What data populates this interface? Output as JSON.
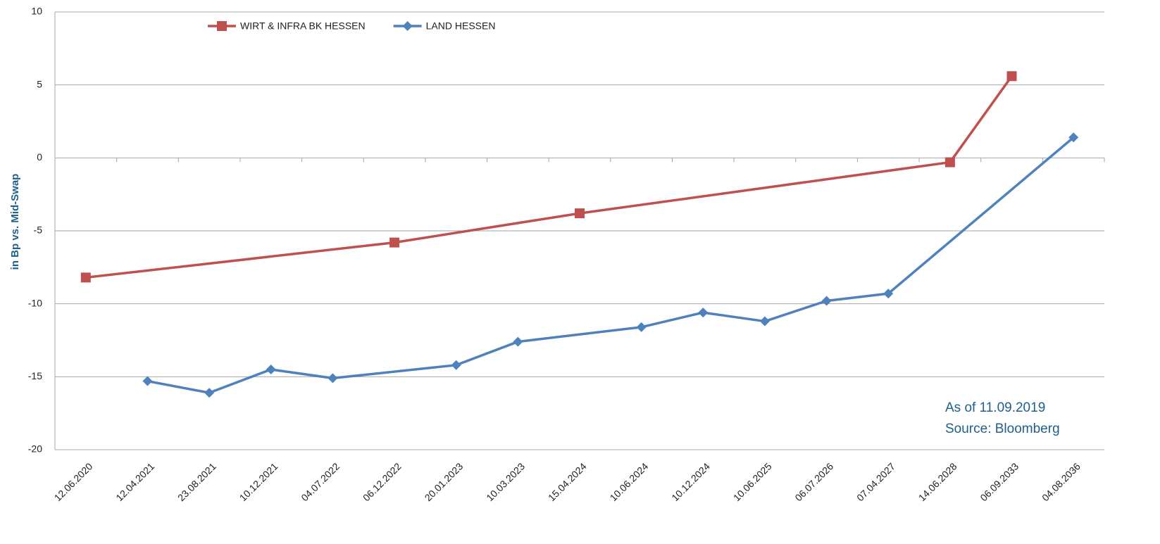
{
  "chart_data": {
    "type": "line",
    "y_label": "in Bp vs. Mid-Swap",
    "annotations": [
      "As of 11.09.2019",
      "Source: Bloomberg"
    ],
    "categories": [
      "12.06.2020",
      "12.04.2021",
      "23.08.2021",
      "10.12.2021",
      "04.07.2022",
      "06.12.2022",
      "20.01.2023",
      "10.03.2023",
      "15.04.2024",
      "10.06.2024",
      "10.12.2024",
      "10.06.2025",
      "06.07.2026",
      "07.04.2027",
      "14.06.2028",
      "06.09.2033",
      "04.08.2036"
    ],
    "series": [
      {
        "name": "WIRT & INFRA BK HESSEN",
        "color": "#c0504d",
        "marker": "square",
        "values": [
          -8.2,
          null,
          null,
          null,
          null,
          -5.8,
          null,
          null,
          -3.8,
          null,
          null,
          null,
          null,
          null,
          -0.3,
          5.6,
          null
        ]
      },
      {
        "name": "LAND HESSEN",
        "color": "#4f81bd",
        "marker": "diamond",
        "values": [
          null,
          -15.3,
          -16.1,
          -14.5,
          -15.1,
          null,
          -14.2,
          -12.6,
          null,
          -11.6,
          -10.6,
          -11.2,
          -9.8,
          -9.3,
          null,
          null,
          1.4
        ]
      }
    ],
    "ylim": [
      -20,
      10
    ],
    "yticks": [
      -20,
      -15,
      -10,
      -5,
      0,
      5,
      10
    ],
    "grid": true
  }
}
